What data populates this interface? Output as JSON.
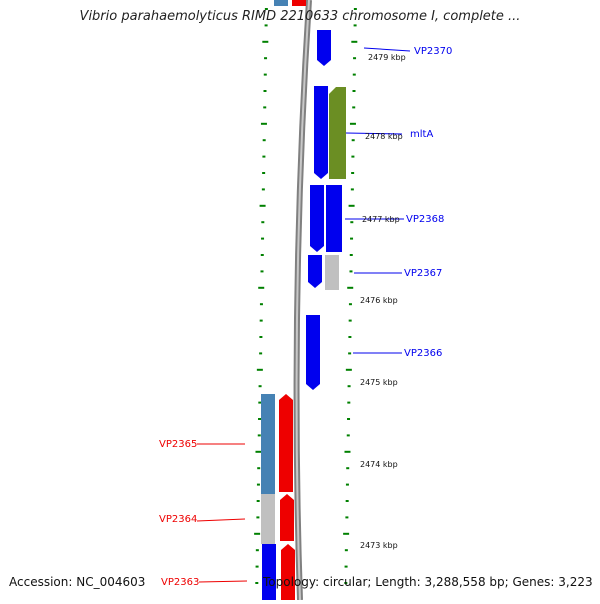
{
  "title": "Vibrio parahaemolyticus RIMD 2210633 chromosome I, complete ...",
  "accession": "Accession: NC_004603",
  "summary": "Topology: circular; Length: 3,288,558 bp; Genes: 3,223",
  "colors": {
    "blue": "#0000ee",
    "steel": "#4682b4",
    "green": "#6b8e23",
    "gray": "#c0c0c0",
    "red": "#ee0000",
    "backbone": "#808080",
    "ticks": "#008000"
  },
  "kbp_labels": [
    "2479 kbp",
    "2478 kbp",
    "2477 kbp",
    "2476 kbp",
    "2475 kbp",
    "2474 kbp",
    "2473 kbp"
  ],
  "gene_labels": [
    "VP2370",
    "mltA",
    "VP2368",
    "VP2367",
    "VP2366",
    "VP2365",
    "VP2364",
    "VP2363"
  ]
}
